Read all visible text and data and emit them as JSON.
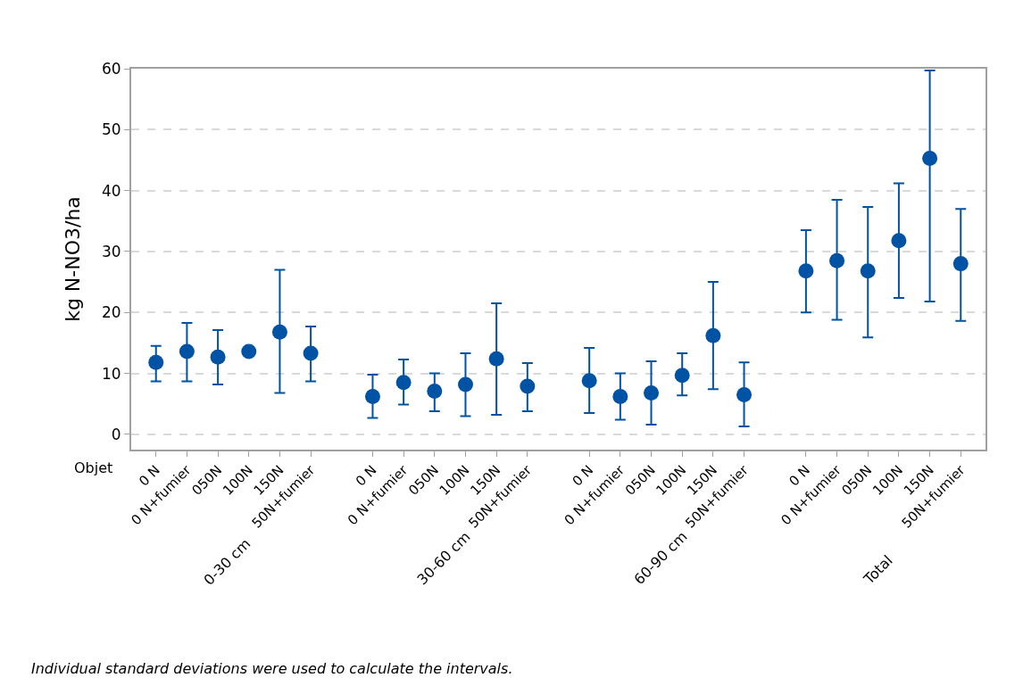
{
  "chart_data": {
    "type": "scatter",
    "xlabel": "Objet",
    "ylabel": "kg N-NO3/ha",
    "categories": [
      "0 N",
      "0 N+fumier",
      "050N",
      "100N",
      "150N",
      "50N+fumier",
      null,
      "0 N",
      "0 N+fumier",
      "050N",
      "100N",
      "150N",
      "50N+fumier",
      null,
      "0 N",
      "0 N+fumier",
      "050N",
      "100N",
      "150N",
      "50N+fumier",
      null,
      "0 N",
      "0 N+fumier",
      "050N",
      "100N",
      "150N",
      "50N+fumier"
    ],
    "series": [
      {
        "color": "#0052a5",
        "values": [
          11.8,
          13.6,
          12.7,
          13.6,
          16.8,
          13.3,
          null,
          6.2,
          8.5,
          7.1,
          8.2,
          12.4,
          7.9,
          null,
          8.8,
          6.2,
          6.8,
          9.7,
          16.2,
          6.5,
          null,
          26.8,
          28.5,
          26.8,
          31.8,
          45.3,
          28.0
        ],
        "errors": [
          [
            8.7,
            14.5
          ],
          [
            8.7,
            18.3
          ],
          [
            8.2,
            17.1
          ],
          null,
          [
            6.8,
            27.0
          ],
          [
            8.7,
            17.7
          ],
          null,
          [
            2.7,
            9.8
          ],
          [
            4.9,
            12.3
          ],
          [
            3.8,
            10.0
          ],
          [
            3.0,
            13.3
          ],
          [
            3.2,
            21.5
          ],
          [
            3.8,
            11.7
          ],
          null,
          [
            3.5,
            14.2
          ],
          [
            2.4,
            10.0
          ],
          [
            1.6,
            12.0
          ],
          [
            6.4,
            13.3
          ],
          [
            7.4,
            25.0
          ],
          [
            1.3,
            11.8
          ],
          null,
          [
            20.0,
            33.5
          ],
          [
            18.8,
            38.5
          ],
          [
            15.9,
            37.3
          ],
          [
            22.4,
            41.2
          ],
          [
            21.8,
            59.7
          ],
          [
            18.6,
            37.0
          ]
        ]
      }
    ],
    "annotations": [
      "0-30 cm",
      "30-60 cm",
      "60-90 cm",
      "Total",
      "Individual standard deviations were used to calculate the intervals."
    ],
    "ylim": [
      -2.5,
      60
    ],
    "yticks": [
      0,
      10,
      20,
      30,
      40,
      50,
      60
    ],
    "grid": "y",
    "marker": "circle"
  }
}
